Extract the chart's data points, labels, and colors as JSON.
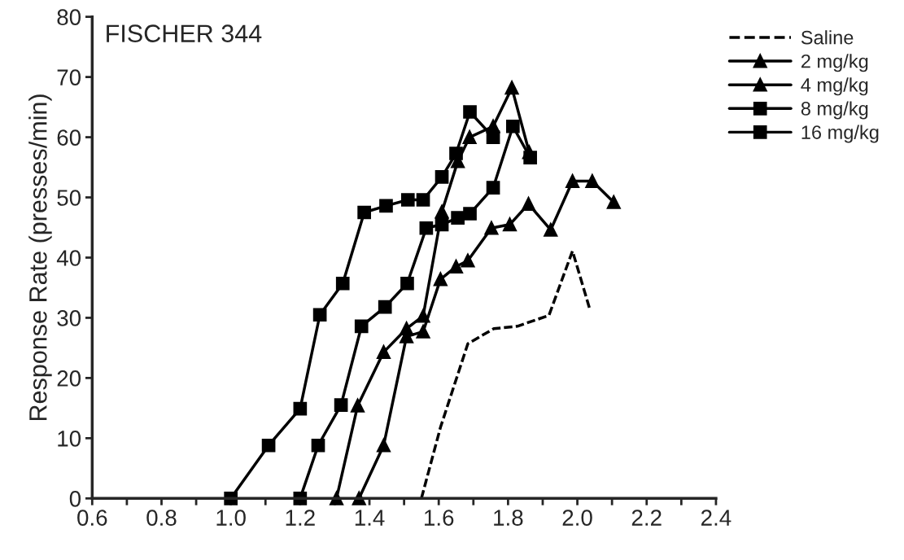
{
  "chart_data": {
    "type": "line",
    "ylabel": "Response Rate (presses/min)",
    "annotations": [
      "FISCHER 344"
    ],
    "xlim": [
      0.6,
      2.4
    ],
    "ylim": [
      0,
      80
    ],
    "xticks": [
      0.6,
      {
        "value": 0.7,
        "label": null
      },
      0.8,
      {
        "value": 0.9,
        "label": null
      },
      "1.0",
      {
        "value": 1.1,
        "label": null
      },
      1.2,
      {
        "value": 1.3,
        "label": null
      },
      1.4,
      {
        "value": 1.5,
        "label": null
      },
      1.6,
      {
        "value": 1.7,
        "label": null
      },
      1.8,
      {
        "value": 1.9,
        "label": null
      },
      "2.0",
      {
        "value": 2.1,
        "label": null
      },
      2.2,
      {
        "value": 2.3,
        "label": null
      },
      2.4
    ],
    "yticks": [
      0,
      10,
      20,
      30,
      40,
      50,
      60,
      70,
      80
    ],
    "grid": false,
    "legend": "top right",
    "series": [
      {
        "name": "Saline",
        "color": "#000000",
        "marker": "none",
        "line_style": "dashed",
        "x": [
          1.55,
          1.605,
          1.684,
          1.759,
          1.827,
          1.918,
          1.986,
          2.036
        ],
        "values": [
          0,
          11.8,
          25.7,
          28.2,
          28.6,
          30.4,
          41.1,
          31.4
        ]
      },
      {
        "name": "2 mg/kg",
        "color": "#000000",
        "marker": "triangle",
        "line_style": "solid",
        "x": [
          1.37,
          1.441,
          1.507,
          1.555,
          1.605,
          1.65,
          1.684,
          1.752,
          1.805,
          1.859,
          1.923,
          1.986,
          2.043,
          2.105
        ],
        "values": [
          0,
          8.8,
          26.9,
          27.7,
          36.4,
          38.5,
          39.5,
          44.9,
          45.5,
          48.9,
          44.6,
          52.7,
          52.7,
          49.2
        ]
      },
      {
        "name": "4 mg/kg",
        "color": "#000000",
        "marker": "triangle",
        "line_style": "solid",
        "x": [
          1.305,
          1.366,
          1.441,
          1.507,
          1.555,
          1.609,
          1.655,
          1.689,
          1.757,
          1.811,
          1.861
        ],
        "values": [
          0,
          15.4,
          24.3,
          28.2,
          30.3,
          47.6,
          56,
          60,
          61.8,
          68.2,
          57.5
        ]
      },
      {
        "name": "8 mg/kg",
        "color": "#000000",
        "marker": "square",
        "line_style": "solid",
        "x": [
          1.2,
          1.252,
          1.318,
          1.377,
          1.445,
          1.509,
          1.564,
          1.609,
          1.655,
          1.69,
          1.757,
          1.814,
          1.864
        ],
        "values": [
          0,
          8.8,
          15.5,
          28.6,
          31.8,
          35.7,
          44.9,
          45.5,
          46.6,
          47.3,
          51.6,
          61.8,
          56.6
        ]
      },
      {
        "name": "16 mg/kg",
        "color": "#000000",
        "marker": "square",
        "line_style": "solid",
        "x": [
          1.0,
          1.109,
          1.2,
          1.257,
          1.323,
          1.385,
          1.448,
          1.511,
          1.555,
          1.609,
          1.65,
          1.69,
          1.757
        ],
        "values": [
          0,
          8.8,
          14.9,
          30.5,
          35.7,
          47.5,
          48.6,
          49.6,
          49.6,
          53.4,
          57.3,
          64.2,
          60.0
        ]
      }
    ]
  }
}
